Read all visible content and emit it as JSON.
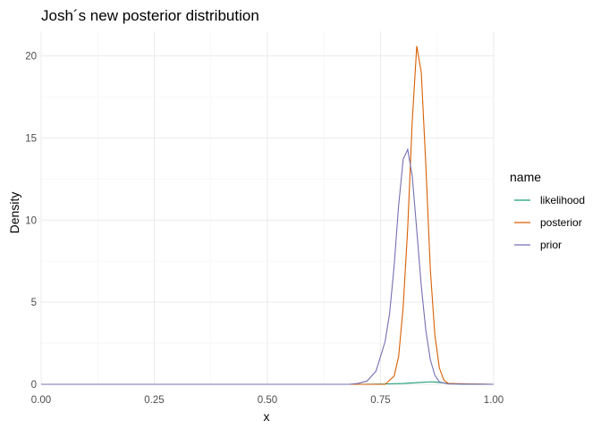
{
  "chart_data": {
    "type": "line",
    "title": "Josh´s new posterior distribution",
    "xlabel": "x",
    "ylabel": "Density",
    "xlim": [
      0,
      1
    ],
    "ylim": [
      0,
      21.5
    ],
    "xticks": [
      0,
      0.25,
      0.5,
      0.75,
      1
    ],
    "xtick_labels": [
      "0.00",
      "0.25",
      "0.50",
      "0.75",
      "1.00"
    ],
    "yticks": [
      0,
      5,
      10,
      15,
      20
    ],
    "ytick_labels": [
      "0",
      "5",
      "10",
      "15",
      "20"
    ],
    "grid": true,
    "legend": {
      "title": "name",
      "position": "right"
    },
    "series": [
      {
        "name": "likelihood",
        "color": "#1b9e77",
        "x": [
          0,
          0.7,
          0.76,
          0.8,
          0.84,
          0.86,
          0.87,
          0.88,
          0.9,
          0.93,
          1
        ],
        "y": [
          0,
          0,
          0.02,
          0.05,
          0.12,
          0.15,
          0.14,
          0.11,
          0.05,
          0.01,
          0
        ]
      },
      {
        "name": "posterior",
        "color": "#d95f02",
        "x": [
          0,
          0.76,
          0.78,
          0.79,
          0.8,
          0.81,
          0.82,
          0.83,
          0.84,
          0.85,
          0.86,
          0.87,
          0.88,
          0.89,
          0.9,
          1
        ],
        "y": [
          0,
          0,
          0.5,
          1.7,
          4.7,
          9.5,
          16.0,
          20.6,
          19.0,
          13.4,
          7.0,
          3.0,
          1.0,
          0.25,
          0.05,
          0
        ]
      },
      {
        "name": "prior",
        "color": "#7570b3",
        "x": [
          0,
          0.68,
          0.7,
          0.72,
          0.74,
          0.76,
          0.77,
          0.78,
          0.79,
          0.8,
          0.81,
          0.82,
          0.83,
          0.84,
          0.85,
          0.86,
          0.87,
          0.88,
          0.9,
          1
        ],
        "y": [
          0,
          0,
          0.05,
          0.2,
          0.8,
          2.6,
          4.3,
          7.2,
          10.9,
          13.7,
          14.3,
          12.7,
          9.4,
          6.0,
          3.3,
          1.5,
          0.55,
          0.15,
          0.02,
          0
        ]
      }
    ]
  }
}
